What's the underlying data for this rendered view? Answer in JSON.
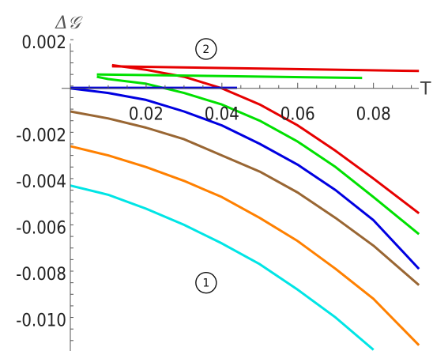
{
  "chart_data": {
    "type": "line",
    "xlabel": "T",
    "ylabel": "Δ𝒢",
    "xlim": [
      0.0,
      0.093
    ],
    "ylim": [
      -0.01135,
      0.00245
    ],
    "x_ticks": [
      0.02,
      0.04,
      0.06,
      0.08
    ],
    "x_tick_labels": [
      "0.02",
      "0.04",
      "0.06",
      "0.08"
    ],
    "y_ticks": [
      0.002,
      -0.002,
      -0.004,
      -0.006,
      -0.008,
      -0.01
    ],
    "y_tick_labels": [
      "0.002",
      "-0.002",
      "-0.004",
      "-0.006",
      "-0.008",
      "-0.010"
    ],
    "grid": false,
    "legend": "none",
    "series": [
      {
        "color": "#00e5e5",
        "x": [
          0,
          0.01,
          0.02,
          0.03,
          0.04,
          0.05,
          0.06,
          0.07,
          0.08
        ],
        "y": [
          -0.0042,
          -0.0046,
          -0.0052,
          -0.0059,
          -0.0067,
          -0.0076,
          -0.0087,
          -0.0099,
          -0.0113
        ]
      },
      {
        "color": "#ff8000",
        "x": [
          0,
          0.01,
          0.02,
          0.03,
          0.04,
          0.05,
          0.06,
          0.07,
          0.08,
          0.092
        ],
        "y": [
          -0.0025,
          -0.0029,
          -0.0034,
          -0.004,
          -0.0047,
          -0.0056,
          -0.0066,
          -0.0078,
          -0.0091,
          -0.0111
        ]
      },
      {
        "color": "#996633",
        "x": [
          0,
          0.01,
          0.02,
          0.03,
          0.04,
          0.05,
          0.06,
          0.07,
          0.08,
          0.092
        ],
        "y": [
          -0.001,
          -0.0013,
          -0.0017,
          -0.0022,
          -0.0029,
          -0.0036,
          -0.0045,
          -0.0056,
          -0.0068,
          -0.0085
        ]
      },
      {
        "color": "#0000e0",
        "x": [
          0,
          0.01,
          0.02,
          0.03,
          0.04,
          0.05,
          0.06,
          0.07,
          0.08,
          0.092
        ],
        "y": [
          0.0,
          -0.0002,
          -0.0005,
          -0.001,
          -0.0016,
          -0.0024,
          -0.0033,
          -0.0044,
          -0.0057,
          -0.0078
        ]
      },
      {
        "color": "#00e000",
        "x": [
          0.007,
          0.01,
          0.02,
          0.03,
          0.04,
          0.05,
          0.06,
          0.07,
          0.08,
          0.092
        ],
        "y": [
          0.0005,
          0.0004,
          0.0002,
          -0.0002,
          -0.0007,
          -0.0014,
          -0.0023,
          -0.0034,
          -0.0047,
          -0.0063
        ]
      },
      {
        "color": "#e60000",
        "x": [
          0.011,
          0.02,
          0.03,
          0.04,
          0.05,
          0.06,
          0.07,
          0.08,
          0.092
        ],
        "y": [
          0.001,
          0.0008,
          0.0005,
          0.0,
          -0.0007,
          -0.0016,
          -0.0027,
          -0.0039,
          -0.0054
        ]
      },
      {
        "color": "#00e000",
        "x": [
          0.007,
          0.077
        ],
        "y": [
          0.0006,
          0.00045
        ]
      },
      {
        "color": "#e60000",
        "x": [
          0.011,
          0.092
        ],
        "y": [
          0.00095,
          0.00075
        ]
      },
      {
        "color": "#0000e0",
        "x": [
          0.0,
          0.044
        ],
        "y": [
          2e-05,
          2e-05
        ]
      }
    ],
    "annotations": [
      {
        "text": "1",
        "x": 0.035,
        "y": -0.0084
      },
      {
        "text": "2",
        "x": 0.035,
        "y": 0.0017
      }
    ]
  }
}
